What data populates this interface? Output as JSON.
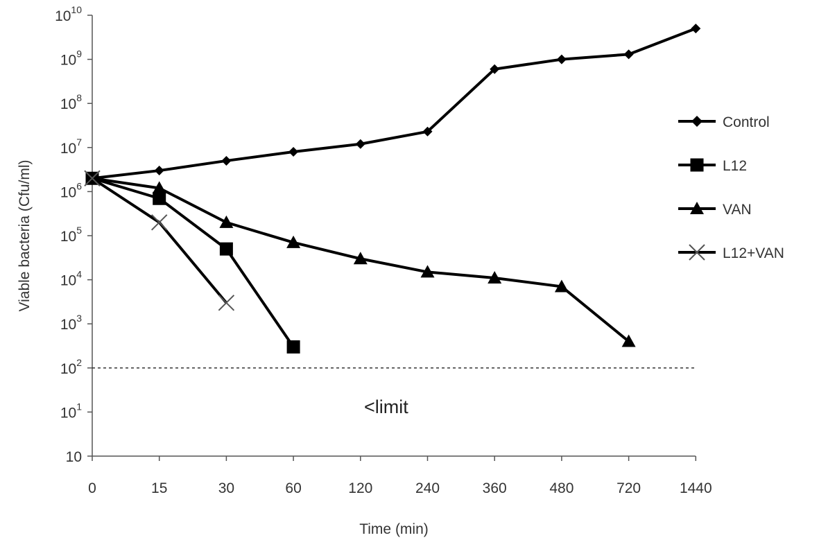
{
  "chart_data": {
    "type": "line",
    "title": "",
    "xlabel": "Time (min)",
    "ylabel": "Viable bacteria (Cfu/ml)",
    "x_scale": "categorical",
    "y_scale": "log",
    "ylim": [
      1,
      10000000000
    ],
    "categories": [
      "0",
      "15",
      "30",
      "60",
      "120",
      "240",
      "360",
      "480",
      "720",
      "1440"
    ],
    "y_ticks": [
      {
        "base": "10",
        "exp": ""
      },
      {
        "base": "10",
        "exp": "1"
      },
      {
        "base": "10",
        "exp": "2"
      },
      {
        "base": "10",
        "exp": "3"
      },
      {
        "base": "10",
        "exp": "4"
      },
      {
        "base": "10",
        "exp": "5"
      },
      {
        "base": "10",
        "exp": "6"
      },
      {
        "base": "10",
        "exp": "7"
      },
      {
        "base": "10",
        "exp": "8"
      },
      {
        "base": "10",
        "exp": "9"
      },
      {
        "base": "10",
        "exp": "10"
      }
    ],
    "series": [
      {
        "name": "Control",
        "marker": "diamond",
        "x": [
          "0",
          "15",
          "30",
          "60",
          "120",
          "240",
          "360",
          "480",
          "720",
          "1440"
        ],
        "values": [
          2000000,
          3000000,
          5000000,
          8000000,
          12000000,
          23000000,
          600000000,
          1000000000,
          1300000000,
          5000000000
        ]
      },
      {
        "name": "L12",
        "marker": "square",
        "x": [
          "0",
          "15",
          "30",
          "60"
        ],
        "values": [
          2000000,
          700000,
          50000,
          300
        ]
      },
      {
        "name": "VAN",
        "marker": "triangle",
        "x": [
          "0",
          "15",
          "30",
          "60",
          "120",
          "240",
          "360",
          "480",
          "720"
        ],
        "values": [
          2000000,
          1200000,
          200000,
          70000,
          30000,
          15000,
          11000,
          7000,
          400
        ]
      },
      {
        "name": "L12+VAN",
        "marker": "x",
        "x": [
          "0",
          "15",
          "30"
        ],
        "values": [
          2000000,
          200000,
          3000
        ]
      }
    ],
    "reference_line": {
      "value": 100,
      "style": "dashed"
    },
    "annotation": {
      "text": "<limit"
    },
    "legend": {
      "position": "right"
    },
    "grid": false,
    "colors": {
      "lines": "#000000",
      "axis": "#555555",
      "x_marker": "#555555",
      "text": "#333333"
    }
  }
}
